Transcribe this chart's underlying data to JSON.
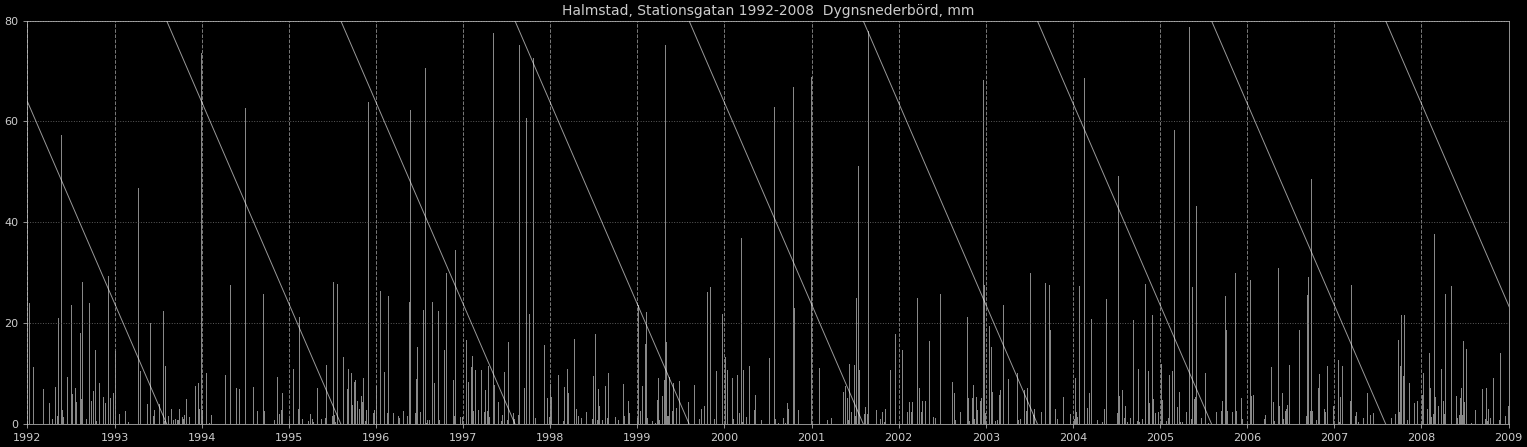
{
  "title": "Halmstad, Stationsgatan 1992-2008  Dygnsnederbörd, mm",
  "background_color": "#000000",
  "bar_color": "#888888",
  "text_color": "#cccccc",
  "grid_color": "#555555",
  "diagonal_line_color": "#ffffff",
  "dashed_vline_color": "#999999",
  "dotted_hline_color": "#666666",
  "ylim": [
    0,
    80
  ],
  "yticks": [
    0,
    20,
    40,
    60,
    80
  ],
  "year_start": 1992,
  "year_end": 2008,
  "title_fontsize": 10,
  "tick_fontsize": 8,
  "figsize": [
    15.27,
    4.47
  ],
  "dpi": 100,
  "n_diagonal": 16,
  "diag_alpha": 0.6,
  "diag_linewidth": 0.7
}
